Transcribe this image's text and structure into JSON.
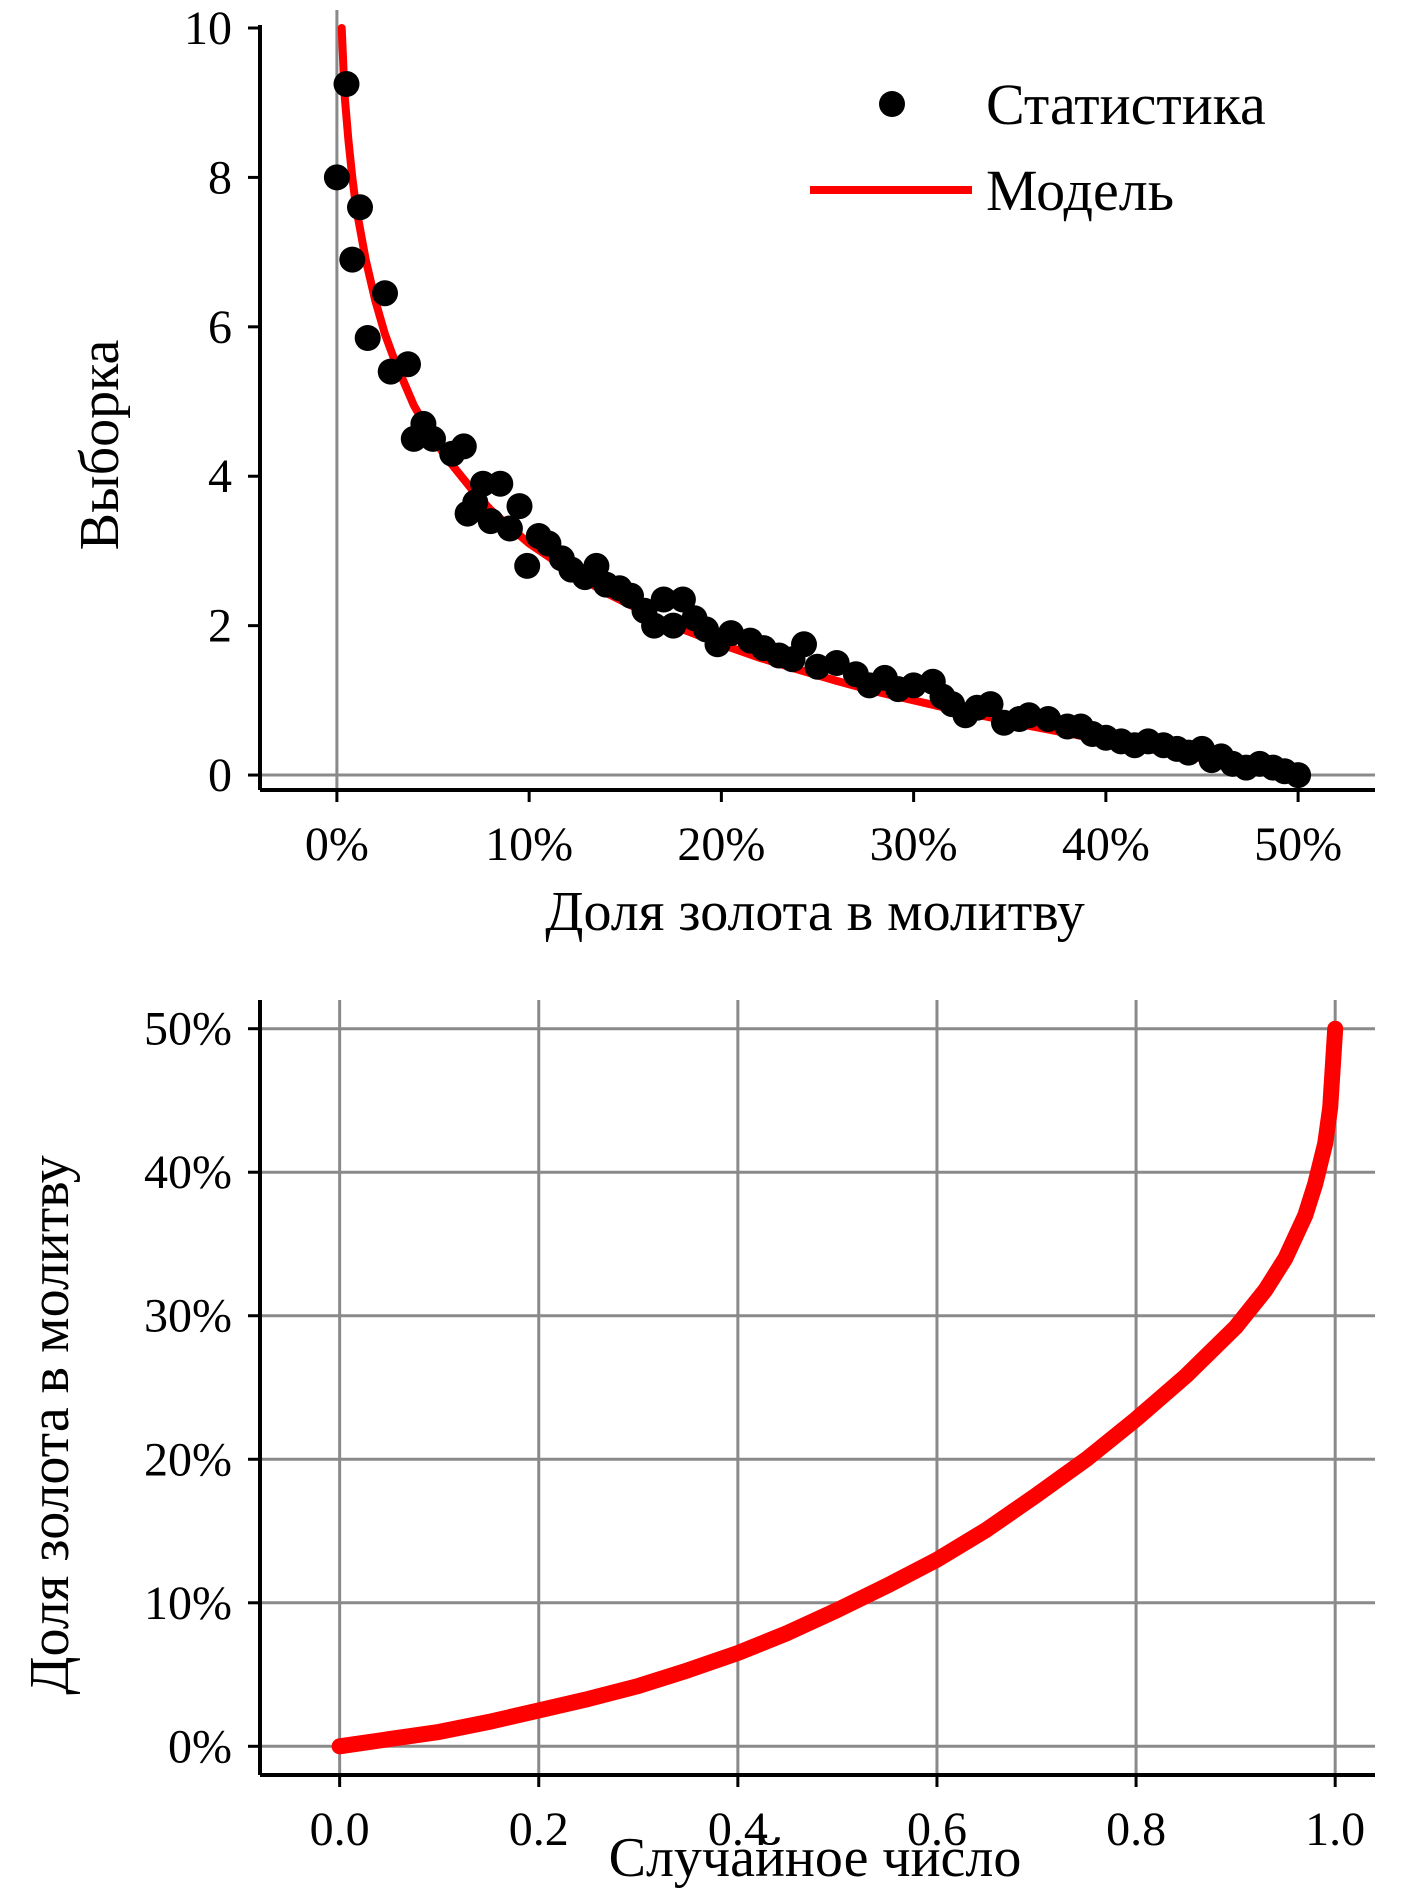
{
  "chart_data": [
    {
      "type": "scatter",
      "title": "",
      "xlabel": "Доля золота в молитву",
      "ylabel": "Выборка",
      "xlim": [
        -0.04,
        0.54
      ],
      "ylim": [
        -0.2,
        10
      ],
      "x_ticks": [
        0,
        0.1,
        0.2,
        0.3,
        0.4,
        0.5
      ],
      "x_tick_labels": [
        "0%",
        "10%",
        "20%",
        "30%",
        "40%",
        "50%"
      ],
      "y_ticks": [
        0,
        2,
        4,
        6,
        8,
        10
      ],
      "y_tick_labels": [
        "0",
        "2",
        "4",
        "6",
        "8",
        "10"
      ],
      "grid": "reference lines at x=0 and y=0",
      "legend": {
        "placement": "top-right",
        "entries": [
          {
            "label": "Статистика",
            "kind": "point",
            "color": "#000000"
          },
          {
            "label": "Модель",
            "kind": "line",
            "color": "#ff0000"
          }
        ]
      },
      "series": [
        {
          "name": "Статистика",
          "kind": "scatter",
          "color": "#000000",
          "points": [
            [
              0.0,
              8.0
            ],
            [
              0.005,
              9.25
            ],
            [
              0.008,
              6.9
            ],
            [
              0.012,
              7.6
            ],
            [
              0.016,
              5.85
            ],
            [
              0.025,
              6.45
            ],
            [
              0.028,
              5.4
            ],
            [
              0.037,
              5.5
            ],
            [
              0.04,
              4.5
            ],
            [
              0.045,
              4.7
            ],
            [
              0.05,
              4.5
            ],
            [
              0.06,
              4.3
            ],
            [
              0.066,
              4.4
            ],
            [
              0.068,
              3.5
            ],
            [
              0.072,
              3.65
            ],
            [
              0.076,
              3.9
            ],
            [
              0.08,
              3.4
            ],
            [
              0.085,
              3.9
            ],
            [
              0.09,
              3.3
            ],
            [
              0.095,
              3.6
            ],
            [
              0.099,
              2.8
            ],
            [
              0.105,
              3.2
            ],
            [
              0.11,
              3.1
            ],
            [
              0.117,
              2.9
            ],
            [
              0.122,
              2.75
            ],
            [
              0.129,
              2.65
            ],
            [
              0.135,
              2.8
            ],
            [
              0.14,
              2.55
            ],
            [
              0.147,
              2.5
            ],
            [
              0.153,
              2.4
            ],
            [
              0.16,
              2.2
            ],
            [
              0.165,
              2.0
            ],
            [
              0.17,
              2.35
            ],
            [
              0.175,
              2.0
            ],
            [
              0.18,
              2.35
            ],
            [
              0.186,
              2.1
            ],
            [
              0.192,
              1.95
            ],
            [
              0.198,
              1.75
            ],
            [
              0.205,
              1.9
            ],
            [
              0.215,
              1.8
            ],
            [
              0.222,
              1.7
            ],
            [
              0.23,
              1.6
            ],
            [
              0.237,
              1.55
            ],
            [
              0.243,
              1.75
            ],
            [
              0.25,
              1.45
            ],
            [
              0.26,
              1.5
            ],
            [
              0.27,
              1.35
            ],
            [
              0.277,
              1.2
            ],
            [
              0.285,
              1.3
            ],
            [
              0.292,
              1.15
            ],
            [
              0.3,
              1.2
            ],
            [
              0.31,
              1.25
            ],
            [
              0.315,
              1.05
            ],
            [
              0.32,
              0.95
            ],
            [
              0.327,
              0.8
            ],
            [
              0.333,
              0.9
            ],
            [
              0.34,
              0.95
            ],
            [
              0.347,
              0.7
            ],
            [
              0.355,
              0.75
            ],
            [
              0.36,
              0.8
            ],
            [
              0.37,
              0.75
            ],
            [
              0.38,
              0.65
            ],
            [
              0.387,
              0.65
            ],
            [
              0.393,
              0.55
            ],
            [
              0.4,
              0.5
            ],
            [
              0.408,
              0.45
            ],
            [
              0.415,
              0.4
            ],
            [
              0.422,
              0.45
            ],
            [
              0.43,
              0.4
            ],
            [
              0.437,
              0.35
            ],
            [
              0.443,
              0.3
            ],
            [
              0.45,
              0.35
            ],
            [
              0.455,
              0.2
            ],
            [
              0.46,
              0.25
            ],
            [
              0.466,
              0.15
            ],
            [
              0.473,
              0.1
            ],
            [
              0.48,
              0.15
            ],
            [
              0.487,
              0.1
            ],
            [
              0.493,
              0.05
            ],
            [
              0.5,
              0.0
            ]
          ]
        },
        {
          "name": "Модель",
          "kind": "line",
          "color": "#ff0000",
          "points": [
            [
              0.0025,
              10.0
            ],
            [
              0.004,
              9.1
            ],
            [
              0.006,
              8.5
            ],
            [
              0.008,
              8.0
            ],
            [
              0.01,
              7.6
            ],
            [
              0.015,
              6.9
            ],
            [
              0.02,
              6.35
            ],
            [
              0.025,
              5.9
            ],
            [
              0.03,
              5.55
            ],
            [
              0.04,
              4.95
            ],
            [
              0.05,
              4.5
            ],
            [
              0.06,
              4.15
            ],
            [
              0.07,
              3.83
            ],
            [
              0.08,
              3.55
            ],
            [
              0.09,
              3.32
            ],
            [
              0.1,
              3.1
            ],
            [
              0.12,
              2.75
            ],
            [
              0.14,
              2.44
            ],
            [
              0.16,
              2.18
            ],
            [
              0.18,
              1.95
            ],
            [
              0.2,
              1.75
            ],
            [
              0.22,
              1.57
            ],
            [
              0.24,
              1.41
            ],
            [
              0.26,
              1.26
            ],
            [
              0.28,
              1.12
            ],
            [
              0.3,
              1.0
            ],
            [
              0.32,
              0.88
            ],
            [
              0.34,
              0.77
            ],
            [
              0.36,
              0.66
            ],
            [
              0.38,
              0.56
            ],
            [
              0.4,
              0.46
            ],
            [
              0.42,
              0.36
            ],
            [
              0.44,
              0.27
            ],
            [
              0.46,
              0.18
            ],
            [
              0.48,
              0.09
            ],
            [
              0.5,
              0.0
            ]
          ]
        }
      ]
    },
    {
      "type": "line",
      "title": "",
      "xlabel": "Случайное число",
      "ylabel": "Доля золота в молитву",
      "xlim": [
        -0.08,
        1.04
      ],
      "ylim": [
        -0.02,
        0.52
      ],
      "x_ticks": [
        0,
        0.2,
        0.4,
        0.6,
        0.8,
        1.0
      ],
      "x_tick_labels": [
        "0.0",
        "0.2",
        "0.4",
        "0.6",
        "0.8",
        "1.0"
      ],
      "y_ticks": [
        0,
        0.1,
        0.2,
        0.3,
        0.4,
        0.5
      ],
      "y_tick_labels": [
        "0%",
        "10%",
        "20%",
        "30%",
        "40%",
        "50%"
      ],
      "grid": true,
      "series": [
        {
          "kind": "line",
          "color": "#ff0000",
          "points": [
            [
              0.0,
              0.0
            ],
            [
              0.05,
              0.005
            ],
            [
              0.1,
              0.01
            ],
            [
              0.15,
              0.017
            ],
            [
              0.2,
              0.025
            ],
            [
              0.25,
              0.033
            ],
            [
              0.3,
              0.042
            ],
            [
              0.35,
              0.053
            ],
            [
              0.4,
              0.065
            ],
            [
              0.45,
              0.079
            ],
            [
              0.5,
              0.095
            ],
            [
              0.55,
              0.112
            ],
            [
              0.6,
              0.13
            ],
            [
              0.65,
              0.151
            ],
            [
              0.7,
              0.175
            ],
            [
              0.75,
              0.2
            ],
            [
              0.8,
              0.228
            ],
            [
              0.85,
              0.258
            ],
            [
              0.9,
              0.292
            ],
            [
              0.93,
              0.318
            ],
            [
              0.95,
              0.34
            ],
            [
              0.97,
              0.37
            ],
            [
              0.98,
              0.392
            ],
            [
              0.99,
              0.42
            ],
            [
              0.995,
              0.445
            ],
            [
              1.0,
              0.5
            ]
          ]
        }
      ]
    }
  ]
}
